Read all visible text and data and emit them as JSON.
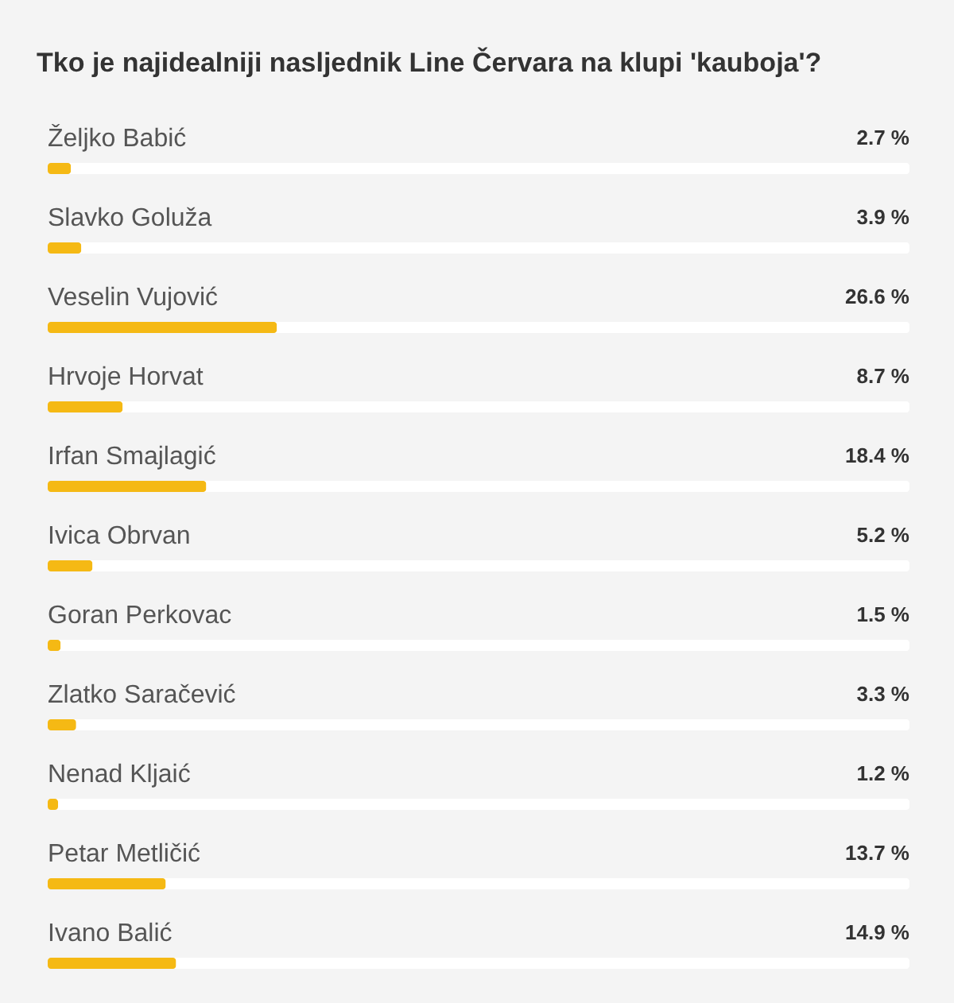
{
  "chart_data": {
    "type": "bar",
    "orientation": "horizontal",
    "title": "Tko je najidealniji nasljednik Line Červara na klupi 'kauboja'?",
    "categories": [
      "Željko Babić",
      "Slavko Goluža",
      "Veselin Vujović",
      "Hrvoje Horvat",
      "Irfan Smajlagić",
      "Ivica Obrvan",
      "Goran Perkovac",
      "Zlatko Saračević",
      "Nenad Kljaić",
      "Petar Metličić",
      "Ivano Balić"
    ],
    "values": [
      2.7,
      3.9,
      26.6,
      8.7,
      18.4,
      5.2,
      1.5,
      3.3,
      1.2,
      13.7,
      14.9
    ],
    "value_labels": [
      "2.7 %",
      "3.9 %",
      "26.6 %",
      "8.7 %",
      "18.4 %",
      "5.2 %",
      "1.5 %",
      "3.3 %",
      "1.2 %",
      "13.7 %",
      "14.9 %"
    ],
    "color": "#f5b914",
    "xlim": [
      0,
      100
    ],
    "tick_labels": "y"
  }
}
